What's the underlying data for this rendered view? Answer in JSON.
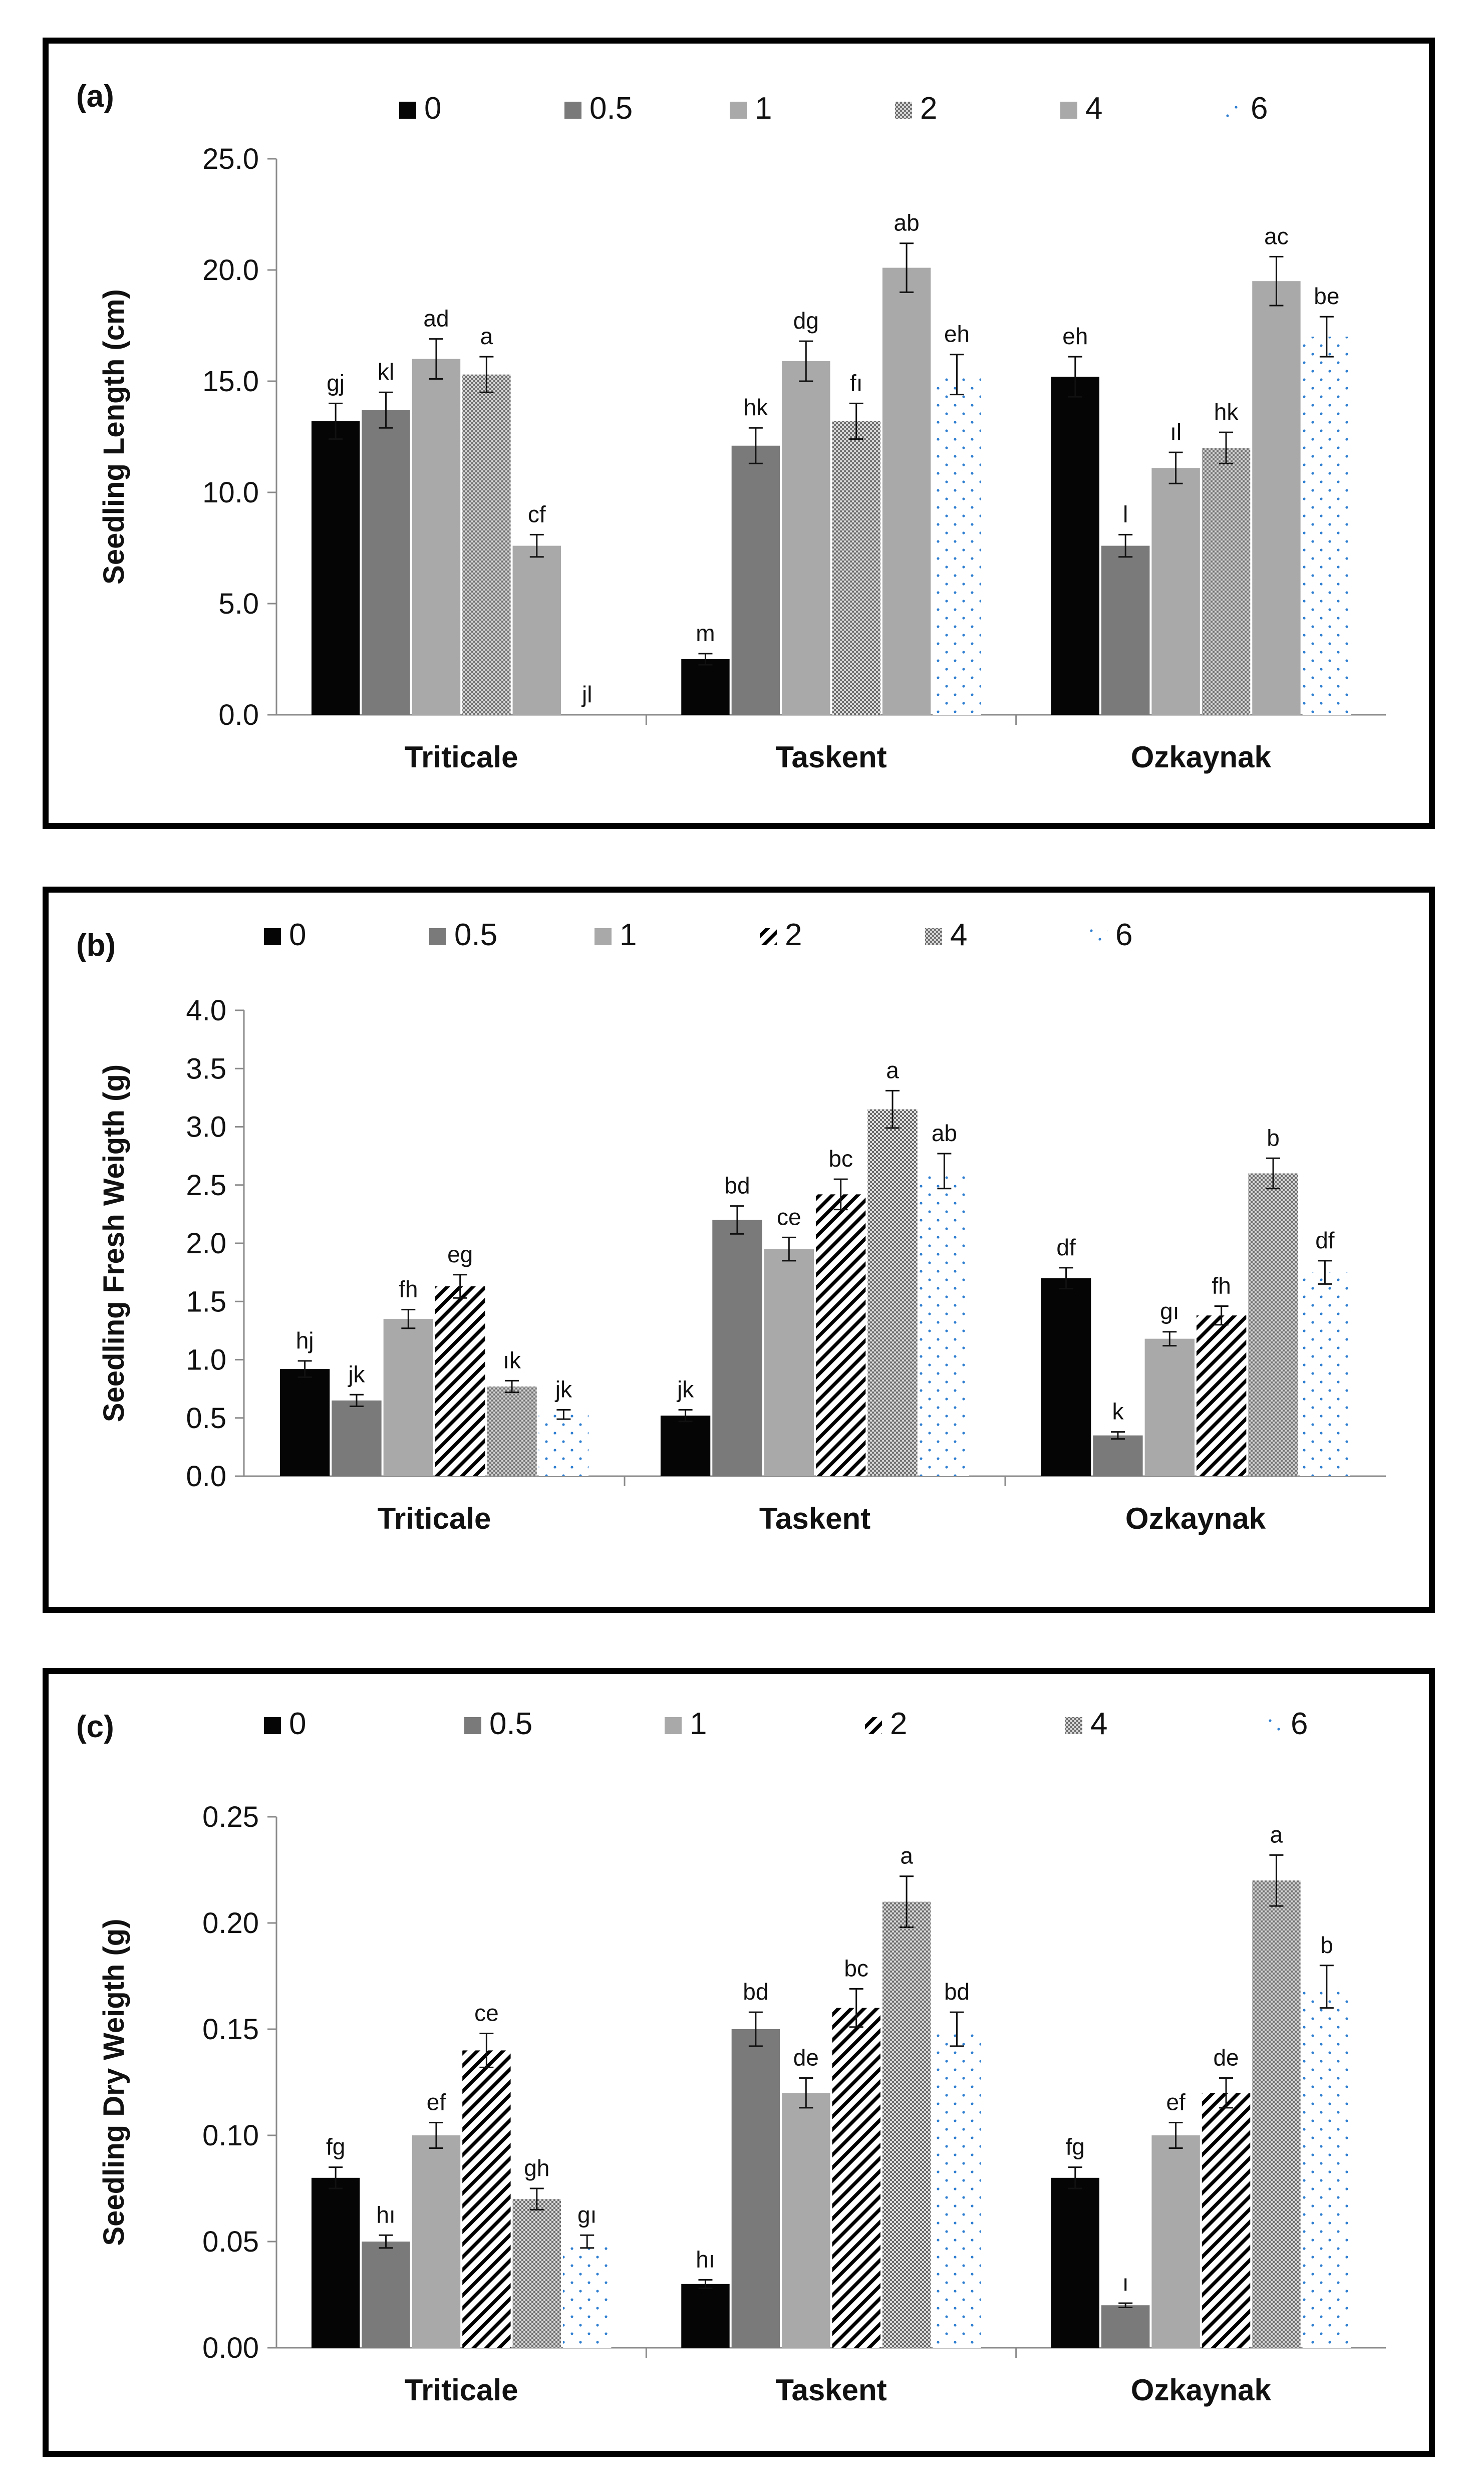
{
  "panels": [
    {
      "label": "(a)",
      "chart_data": {
        "type": "bar",
        "ylabel": "Seedling Length (cm)",
        "xlabel": "",
        "ylim": [
          0,
          25
        ],
        "yticks": [
          "0.0",
          "5.0",
          "10.0",
          "15.0",
          "20.0",
          "25.0"
        ],
        "grid": false,
        "legend_position": "top",
        "categories": [
          "Triticale",
          "Taskent",
          "Ozkaynak"
        ],
        "series": [
          {
            "name": "0",
            "pattern": "solid-black",
            "values": [
              13.2,
              2.5,
              15.2
            ],
            "errors": [
              0.8,
              0.25,
              0.9
            ],
            "letters": [
              "gj",
              "m",
              "eh"
            ]
          },
          {
            "name": "0.5",
            "pattern": "solid-darkgray",
            "values": [
              13.7,
              12.1,
              7.6
            ],
            "errors": [
              0.8,
              0.8,
              0.5
            ],
            "letters": [
              "kl",
              "hk",
              "l"
            ]
          },
          {
            "name": "1",
            "pattern": "solid-lightgray",
            "values": [
              16.0,
              15.9,
              11.1
            ],
            "errors": [
              0.9,
              0.9,
              0.7
            ],
            "letters": [
              "ad",
              "dg",
              "ıl"
            ]
          },
          {
            "name": "2",
            "pattern": "dots-gray",
            "values": [
              15.3,
              13.2,
              12.0
            ],
            "errors": [
              0.8,
              0.8,
              0.7
            ],
            "letters": [
              "a",
              "fı",
              "hk"
            ]
          },
          {
            "name": "4",
            "pattern": "solid-lightgray",
            "values": [
              7.6,
              20.1,
              19.5
            ],
            "errors": [
              0.5,
              1.1,
              1.1
            ],
            "letters": [
              "cf",
              "ab",
              "ac"
            ]
          },
          {
            "name": "6",
            "pattern": "blue-dots",
            "values": [
              0,
              15.3,
              17.0
            ],
            "errors": [
              0,
              0.9,
              0.9
            ],
            "letters": [
              "jl",
              "eh",
              "be"
            ]
          }
        ]
      }
    },
    {
      "label": "(b)",
      "chart_data": {
        "type": "bar",
        "ylabel": "Seedling Fresh Weigth (g)",
        "xlabel": "",
        "ylim": [
          0,
          4
        ],
        "yticks": [
          "0.0",
          "0.5",
          "1.0",
          "1.5",
          "2.0",
          "2.5",
          "3.0",
          "3.5",
          "4.0"
        ],
        "grid": false,
        "legend_position": "top",
        "categories": [
          "Triticale",
          "Taskent",
          "Ozkaynak"
        ],
        "series": [
          {
            "name": "0",
            "pattern": "solid-black",
            "values": [
              0.92,
              0.52,
              1.7
            ],
            "errors": [
              0.07,
              0.05,
              0.09
            ],
            "letters": [
              "hj",
              "jk",
              "df"
            ]
          },
          {
            "name": "0.5",
            "pattern": "solid-darkgray",
            "values": [
              0.65,
              2.2,
              0.35
            ],
            "errors": [
              0.05,
              0.12,
              0.03
            ],
            "letters": [
              "jk",
              "bd",
              "k"
            ]
          },
          {
            "name": "1",
            "pattern": "solid-lightgray",
            "values": [
              1.35,
              1.95,
              1.18
            ],
            "errors": [
              0.08,
              0.1,
              0.06
            ],
            "letters": [
              "fh",
              "ce",
              "gı"
            ]
          },
          {
            "name": "2",
            "pattern": "diag-black",
            "values": [
              1.63,
              2.42,
              1.38
            ],
            "errors": [
              0.1,
              0.13,
              0.08
            ],
            "letters": [
              "eg",
              "bc",
              "fh"
            ]
          },
          {
            "name": "4",
            "pattern": "dots-gray",
            "values": [
              0.77,
              3.15,
              2.6
            ],
            "errors": [
              0.05,
              0.16,
              0.13
            ],
            "letters": [
              "ık",
              "a",
              "b"
            ]
          },
          {
            "name": "6",
            "pattern": "blue-dots",
            "values": [
              0.53,
              2.62,
              1.75
            ],
            "errors": [
              0.04,
              0.15,
              0.1
            ],
            "letters": [
              "jk",
              "ab",
              "df"
            ]
          }
        ]
      }
    },
    {
      "label": "(c)",
      "chart_data": {
        "type": "bar",
        "ylabel": "Seedling Dry Weigth (g)",
        "xlabel": "",
        "ylim": [
          0,
          0.25
        ],
        "yticks": [
          "0.00",
          "0.05",
          "0.10",
          "0.15",
          "0.20",
          "0.25"
        ],
        "grid": false,
        "legend_position": "top",
        "categories": [
          "Triticale",
          "Taskent",
          "Ozkaynak"
        ],
        "series": [
          {
            "name": "0",
            "pattern": "solid-black",
            "values": [
              0.08,
              0.03,
              0.08
            ],
            "errors": [
              0.005,
              0.002,
              0.005
            ],
            "letters": [
              "fg",
              "hı",
              "fg"
            ]
          },
          {
            "name": "0.5",
            "pattern": "solid-darkgray",
            "values": [
              0.05,
              0.15,
              0.02
            ],
            "errors": [
              0.003,
              0.008,
              0.001
            ],
            "letters": [
              "hı",
              "bd",
              "ı"
            ]
          },
          {
            "name": "1",
            "pattern": "solid-lightgray",
            "values": [
              0.1,
              0.12,
              0.1
            ],
            "errors": [
              0.006,
              0.007,
              0.006
            ],
            "letters": [
              "ef",
              "de",
              "ef"
            ]
          },
          {
            "name": "2",
            "pattern": "diag-black",
            "values": [
              0.14,
              0.16,
              0.12
            ],
            "errors": [
              0.008,
              0.009,
              0.007
            ],
            "letters": [
              "ce",
              "bc",
              "de"
            ]
          },
          {
            "name": "4",
            "pattern": "dots-gray",
            "values": [
              0.07,
              0.21,
              0.22
            ],
            "errors": [
              0.005,
              0.012,
              0.012
            ],
            "letters": [
              "gh",
              "a",
              "a"
            ]
          },
          {
            "name": "6",
            "pattern": "blue-dots",
            "values": [
              0.05,
              0.15,
              0.17
            ],
            "errors": [
              0.003,
              0.008,
              0.01
            ],
            "letters": [
              "gı",
              "bd",
              "b"
            ]
          }
        ]
      }
    }
  ]
}
